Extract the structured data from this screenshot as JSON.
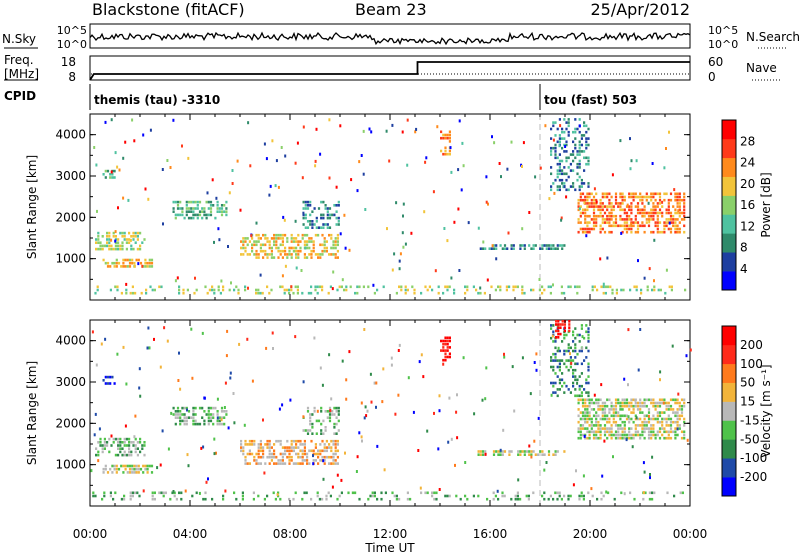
{
  "header": {
    "station": "Blackstone (fitACF)",
    "beam": "Beam 23",
    "date": "25/Apr/2012"
  },
  "params": {
    "nsky_label": "N.Sky",
    "nsearch_label": "N.Search",
    "freq_label_line1": "Freq.",
    "freq_label_line2": "[MHz]",
    "nave_label": "Nave",
    "cpid_label": "CPID",
    "nsky_ticks": [
      "10^5",
      "10^0"
    ],
    "nsearch_ticks": [
      "10^5",
      "10^0"
    ],
    "freq_ticks": [
      "18",
      "8"
    ],
    "nave_ticks": [
      "60",
      "0"
    ],
    "cpid_events": [
      {
        "time_h": 0.0,
        "label": "themis (tau)  -3310"
      },
      {
        "time_h": 18.0,
        "label": "tou (fast) 503"
      }
    ],
    "freq_steps": [
      {
        "t": 0.0,
        "mhz": 8
      },
      {
        "t": 0.15,
        "mhz": 10.5
      },
      {
        "t": 13.1,
        "mhz": 10.5
      },
      {
        "t": 13.1,
        "mhz": 15.5
      },
      {
        "t": 24.0,
        "mhz": 15.5
      }
    ]
  },
  "chart_data": [
    {
      "type": "heatmap",
      "ylabel": "Slant Range [km]",
      "ylim": [
        0,
        4500
      ],
      "yticks": [
        "1000",
        "2000",
        "3000",
        "4000"
      ],
      "colorbar_label": "Power [dB]",
      "colorbar_ticks": [
        "28",
        "24",
        "20",
        "16",
        "12",
        "8",
        "4"
      ],
      "colors": [
        "#0000ff",
        "#1e3fa0",
        "#2f8a6a",
        "#4fc2a0",
        "#8ad06a",
        "#f2c43a",
        "#ff8a1c",
        "#ff3a1a",
        "#ff0000"
      ],
      "patches": [
        {
          "t0": 0.5,
          "t1": 1.0,
          "r0": 2950,
          "r1": 3150,
          "dens": 0.5,
          "lvl": 3
        },
        {
          "t0": 0.2,
          "t1": 2.2,
          "r0": 1200,
          "r1": 1650,
          "dens": 0.5,
          "lvl": 4
        },
        {
          "t0": 0.5,
          "t1": 2.5,
          "r0": 750,
          "r1": 1000,
          "dens": 0.55,
          "lvl": 5
        },
        {
          "t0": 3.3,
          "t1": 5.5,
          "r0": 1950,
          "r1": 2400,
          "dens": 0.5,
          "lvl": 3
        },
        {
          "t0": 6.0,
          "t1": 10.0,
          "r0": 1000,
          "r1": 1600,
          "dens": 0.55,
          "lvl": 5
        },
        {
          "t0": 8.5,
          "t1": 10.0,
          "r0": 1700,
          "r1": 2400,
          "dens": 0.35,
          "lvl": 2
        },
        {
          "t0": 14.0,
          "t1": 14.4,
          "r0": 3500,
          "r1": 4100,
          "dens": 0.45,
          "lvl": 6
        },
        {
          "t0": 15.5,
          "t1": 19.0,
          "r0": 1200,
          "r1": 1350,
          "dens": 0.6,
          "lvl": 2
        },
        {
          "t0": 19.5,
          "t1": 23.8,
          "r0": 1600,
          "r1": 2600,
          "dens": 0.6,
          "lvl": 6
        },
        {
          "t0": 18.4,
          "t1": 20.0,
          "r0": 2600,
          "r1": 4400,
          "dens": 0.35,
          "lvl": 2
        },
        {
          "t0": 0.0,
          "t1": 24.0,
          "r0": 150,
          "r1": 350,
          "dens": 0.22,
          "lvl": 4
        }
      ]
    },
    {
      "type": "heatmap",
      "ylabel": "Slant Range [km]",
      "xlabel": "Time UT",
      "ylim": [
        0,
        4500
      ],
      "yticks": [
        "1000",
        "2000",
        "3000",
        "4000"
      ],
      "xticks": [
        "00:00",
        "04:00",
        "08:00",
        "12:00",
        "16:00",
        "20:00",
        "00:00"
      ],
      "colorbar_label": "Velocity [m s⁻¹]",
      "colorbar_ticks": [
        "200",
        "100",
        "50",
        "15",
        "-15",
        "-50",
        "-100",
        "-200"
      ],
      "colors": [
        "#0000ff",
        "#1f4aa8",
        "#2f8a4a",
        "#4fc24a",
        "#b8b8b8",
        "#f2b43a",
        "#ff7a1c",
        "#ff2a1a",
        "#ff0000"
      ],
      "patches": [
        {
          "t0": 0.5,
          "t1": 1.0,
          "r0": 2950,
          "r1": 3150,
          "dens": 0.5,
          "lvl": 0
        },
        {
          "t0": 0.2,
          "t1": 2.2,
          "r0": 1200,
          "r1": 1650,
          "dens": 0.5,
          "lvl": 3
        },
        {
          "t0": 0.5,
          "t1": 2.5,
          "r0": 750,
          "r1": 1000,
          "dens": 0.55,
          "lvl": 4
        },
        {
          "t0": 3.3,
          "t1": 5.5,
          "r0": 1950,
          "r1": 2400,
          "dens": 0.5,
          "lvl": 3
        },
        {
          "t0": 6.0,
          "t1": 10.0,
          "r0": 1000,
          "r1": 1600,
          "dens": 0.55,
          "lvl": 5
        },
        {
          "t0": 8.5,
          "t1": 10.0,
          "r0": 1700,
          "r1": 2400,
          "dens": 0.35,
          "lvl": 3
        },
        {
          "t0": 14.0,
          "t1": 14.4,
          "r0": 3500,
          "r1": 4100,
          "dens": 0.45,
          "lvl": 8
        },
        {
          "t0": 15.5,
          "t1": 19.0,
          "r0": 1200,
          "r1": 1350,
          "dens": 0.6,
          "lvl": 4
        },
        {
          "t0": 19.5,
          "t1": 23.8,
          "r0": 1600,
          "r1": 2600,
          "dens": 0.65,
          "lvl": 4
        },
        {
          "t0": 18.4,
          "t1": 20.0,
          "r0": 2600,
          "r1": 4400,
          "dens": 0.35,
          "lvl": 2
        },
        {
          "t0": 18.6,
          "t1": 19.2,
          "r0": 4000,
          "r1": 4500,
          "dens": 0.5,
          "lvl": 8
        },
        {
          "t0": 0.0,
          "t1": 24.0,
          "r0": 150,
          "r1": 350,
          "dens": 0.2,
          "lvl": 3
        }
      ]
    }
  ]
}
